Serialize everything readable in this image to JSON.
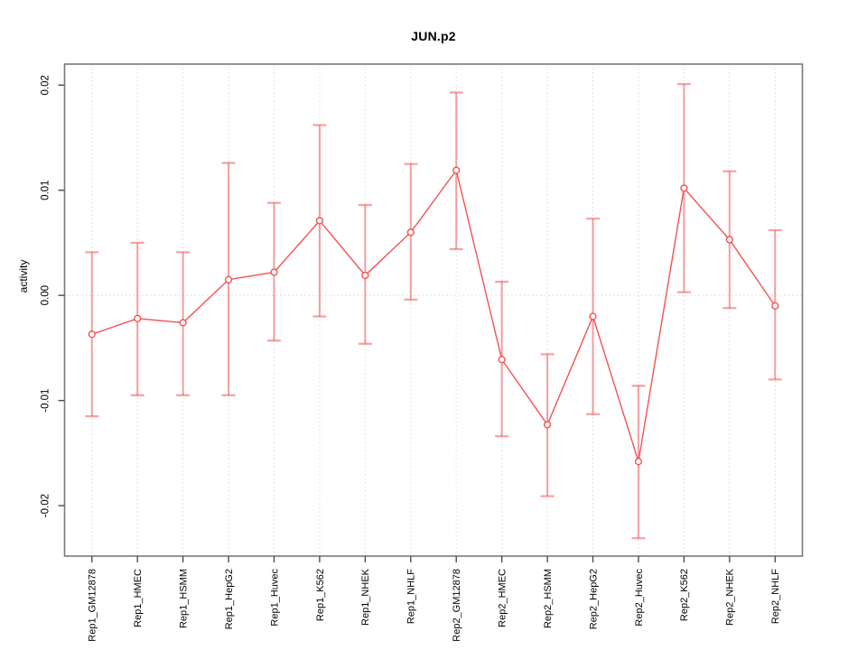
{
  "figure": {
    "title": "JUN.p2",
    "y_axis_label": "activity"
  },
  "colors": {
    "series": "#f25252",
    "whisker": "rgba(242,82,82,0.55)",
    "marker_fill": "#ffffff",
    "axis_box": "#7a7a7a",
    "tick": "#4d4d4d",
    "grid": "#d9d9d9",
    "text": "#000000",
    "background": "#ffffff"
  },
  "chart_data": {
    "type": "line",
    "title": "JUN.p2",
    "xlabel": "",
    "ylabel": "activity",
    "marker": "open-circle",
    "error_bars": true,
    "legend": null,
    "grid": {
      "vertical_dotted_per_category": true,
      "horizontal_dotted_at_zero": true
    },
    "ylim": [
      -0.0248,
      0.022
    ],
    "yticks": [
      0.02,
      0.01,
      0.0,
      -0.01,
      -0.02
    ],
    "ytick_labels": [
      "0.02",
      "0.01",
      "0.00",
      "-0.01",
      "-0.02"
    ],
    "categories": [
      "Rep1_GM12878",
      "Rep1_HMEC",
      "Rep1_HSMM",
      "Rep1_HepG2",
      "Rep1_Huvec",
      "Rep1_K562",
      "Rep1_NHEK",
      "Rep1_NHLF",
      "Rep2_GM12878",
      "Rep2_HMEC",
      "Rep2_HSMM",
      "Rep2_HepG2",
      "Rep2_Huvec",
      "Rep2_K562",
      "Rep2_NHEK",
      "Rep2_NHLF"
    ],
    "series": [
      {
        "name": "activity",
        "values": [
          -0.0037,
          -0.0022,
          -0.0026,
          0.0015,
          0.0022,
          0.0071,
          0.0019,
          0.006,
          0.0119,
          -0.0061,
          -0.0123,
          -0.002,
          -0.0158,
          0.0102,
          0.0053,
          -0.001
        ],
        "ci_lower": [
          -0.0115,
          -0.0095,
          -0.0095,
          -0.0095,
          -0.0043,
          -0.002,
          -0.0046,
          -0.0004,
          0.0044,
          -0.0134,
          -0.0191,
          -0.0113,
          -0.0231,
          0.0003,
          -0.0012,
          -0.008
        ],
        "ci_upper": [
          0.0041,
          0.005,
          0.0041,
          0.0126,
          0.0088,
          0.0162,
          0.0086,
          0.0125,
          0.0193,
          0.0013,
          -0.0056,
          0.0073,
          -0.0086,
          0.0201,
          0.0118,
          0.0062
        ]
      }
    ]
  }
}
